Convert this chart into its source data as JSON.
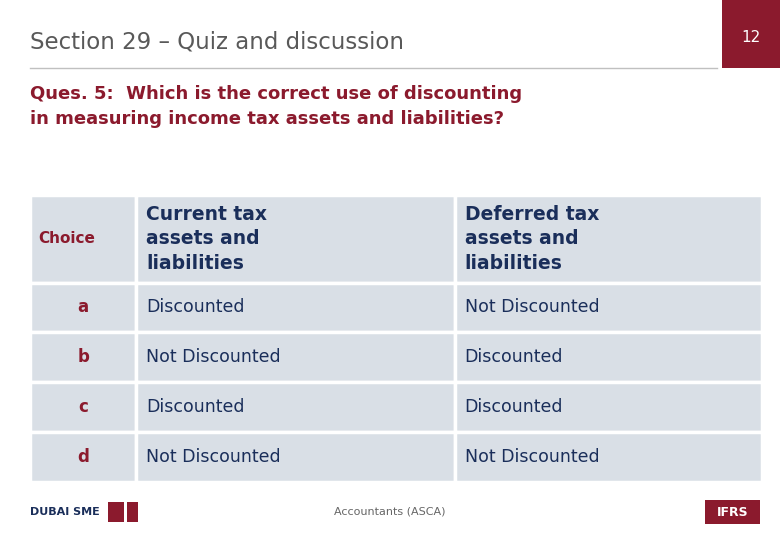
{
  "title": "Section 29 – Quiz and discussion",
  "slide_number": "12",
  "question": "Ques. 5:  Which is the correct use of discounting\nin measuring income tax assets and liabilities?",
  "title_color": "#595959",
  "question_color": "#8B1A2D",
  "header_text_color": "#1a2e5a",
  "body_text_color": "#1a2e5a",
  "choice_text_color": "#8B1A2D",
  "slide_number_color": "#ffffff",
  "slide_number_bg": "#8B1A2D",
  "table_bg_color": "#d9dfe6",
  "table_border_color": "#ffffff",
  "bg_color": "#ffffff",
  "col_headers": [
    "Choice",
    "Current tax\nassets and\nliabilities",
    "Deferred tax\nassets and\nliabilities"
  ],
  "rows": [
    [
      "a",
      "Discounted",
      "Not Discounted"
    ],
    [
      "b",
      "Not Discounted",
      "Discounted"
    ],
    [
      "c",
      "Discounted",
      "Discounted"
    ],
    [
      "d",
      "Not Discounted",
      "Not Discounted"
    ]
  ],
  "footer_center": "Accountants (ASCA)",
  "footer_left": "DUBAI SME",
  "footer_right": "IFRS"
}
